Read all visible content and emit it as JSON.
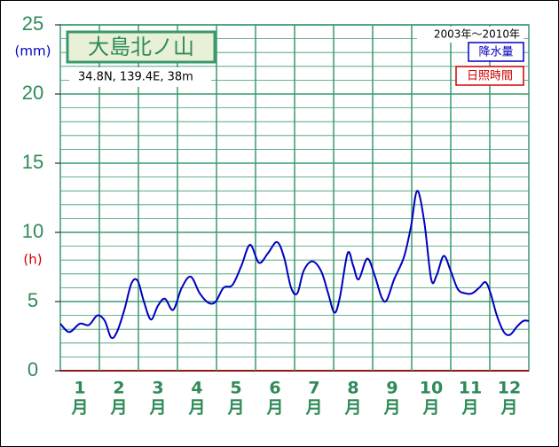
{
  "chart_data": {
    "type": "line",
    "title": "大島北ノ山",
    "subtitle": "34.8N, 139.4E, 38m",
    "period": "2003年～2010年",
    "y_unit_label": "(mm)",
    "y2_unit_label": "(h)",
    "categories": [
      "1",
      "2",
      "3",
      "4",
      "5",
      "6",
      "7",
      "8",
      "9",
      "10",
      "11",
      "12"
    ],
    "category_suffix": "月",
    "xlim": [
      0,
      12
    ],
    "ylim": [
      0,
      25
    ],
    "yticks": [
      0,
      5,
      10,
      15,
      20,
      25
    ],
    "grid": true,
    "legend": "top-right",
    "series": [
      {
        "name": "降水量",
        "color": "#0000c0",
        "x": [
          0,
          0.23,
          0.5,
          0.73,
          0.95,
          1.14,
          1.3,
          1.45,
          1.64,
          1.82,
          1.98,
          2.14,
          2.32,
          2.5,
          2.68,
          2.89,
          3.11,
          3.34,
          3.57,
          3.8,
          3.98,
          4.18,
          4.41,
          4.64,
          4.86,
          5.09,
          5.32,
          5.55,
          5.73,
          5.91,
          6.07,
          6.23,
          6.45,
          6.68,
          6.86,
          7.02,
          7.16,
          7.36,
          7.5,
          7.64,
          7.86,
          8.05,
          8.23,
          8.36,
          8.55,
          8.8,
          8.98,
          9.14,
          9.32,
          9.5,
          9.64,
          9.82,
          10,
          10.18,
          10.36,
          10.55,
          10.73,
          10.89,
          11.02,
          11.18,
          11.36,
          11.52,
          11.7,
          11.86,
          12
        ],
        "values": [
          3.4,
          2.8,
          3.4,
          3.3,
          4.0,
          3.6,
          2.4,
          2.8,
          4.4,
          6.3,
          6.5,
          5.0,
          3.7,
          4.7,
          5.2,
          4.4,
          6.0,
          6.8,
          5.6,
          4.9,
          5.0,
          6.0,
          6.2,
          7.6,
          9.1,
          7.8,
          8.5,
          9.3,
          8.2,
          6.0,
          5.6,
          7.2,
          7.9,
          7.2,
          5.6,
          4.2,
          5.3,
          8.5,
          7.6,
          6.6,
          8.1,
          6.9,
          5.3,
          5.1,
          6.6,
          8.2,
          10.4,
          13.0,
          10.8,
          6.6,
          6.9,
          8.3,
          7.2,
          5.9,
          5.6,
          5.6,
          6.0,
          6.4,
          5.6,
          4.0,
          2.8,
          2.6,
          3.2,
          3.6,
          3.6
        ]
      },
      {
        "name": "日照時間",
        "color": "#d00000",
        "x": [],
        "values": []
      }
    ]
  }
}
